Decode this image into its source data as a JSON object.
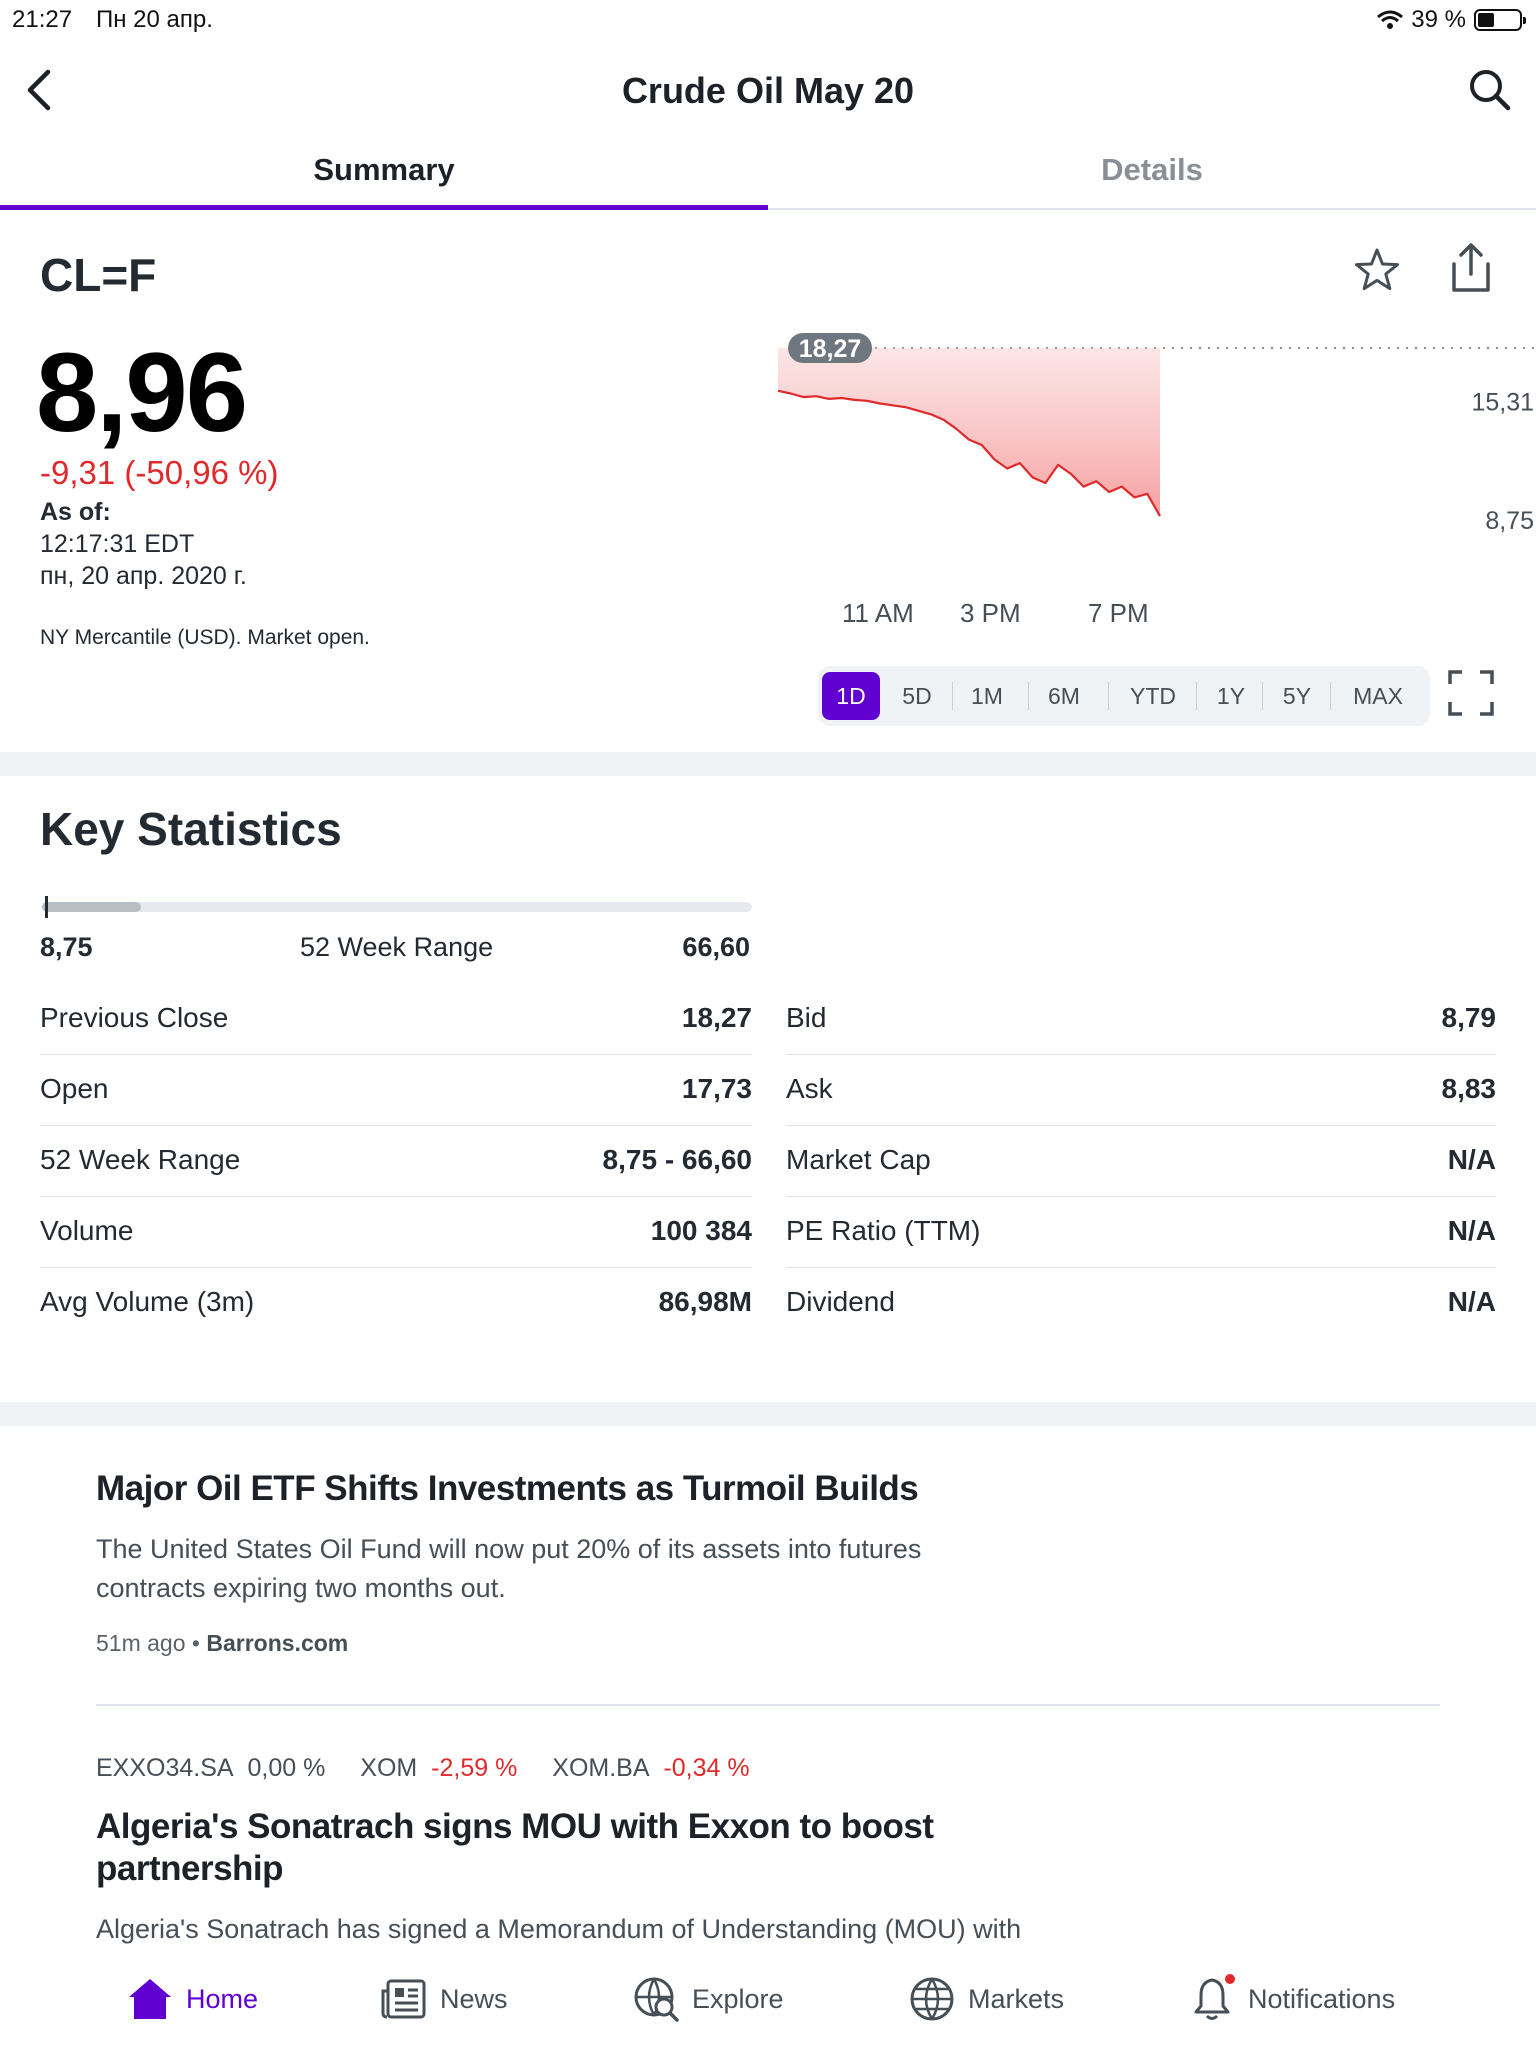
{
  "status_bar": {
    "time": "21:27",
    "date": "Пн 20 апр.",
    "battery": "39 %"
  },
  "nav": {
    "title": "Crude Oil May 20"
  },
  "tabs": {
    "summary": "Summary",
    "details": "Details"
  },
  "quote": {
    "symbol": "CL=F",
    "price": "8,96",
    "change": "-9,31 (-50,96 %)",
    "asof_label": "As of:",
    "asof_time": "12:17:31 EDT",
    "asof_date": "пн, 20 апр. 2020 г.",
    "exchange": "NY Mercantile (USD). Market open."
  },
  "chart_data": {
    "type": "area",
    "title": "",
    "x_tick_labels": [
      "11 AM",
      "3 PM",
      "7 PM"
    ],
    "y_tick_labels": [
      "15,31",
      "8,75"
    ],
    "previous_close_label": "18,27",
    "previous_close": 18.27,
    "ylim": [
      8.75,
      18.27
    ],
    "y_gridlines": [
      15.31,
      8.75
    ],
    "series": [
      {
        "values": [
          15.9,
          15.75,
          15.55,
          15.6,
          15.45,
          15.5,
          15.4,
          15.35,
          15.2,
          15.1,
          15.0,
          14.8,
          14.6,
          14.3,
          13.8,
          13.2,
          12.9,
          12.1,
          11.6,
          11.9,
          11.1,
          10.8,
          11.8,
          11.3,
          10.6,
          10.9,
          10.3,
          10.6,
          10.0,
          10.2,
          8.96
        ]
      }
    ]
  },
  "ranges": [
    "1D",
    "5D",
    "1M",
    "6M",
    "YTD",
    "1Y",
    "5Y",
    "MAX"
  ],
  "key_stats": {
    "title": "Key Statistics",
    "range_low": "8,75",
    "range_label": "52 Week Range",
    "range_high": "66,60",
    "range_fraction": 0.004,
    "left": [
      {
        "label": "Previous Close",
        "value": "18,27"
      },
      {
        "label": "Open",
        "value": "17,73"
      },
      {
        "label": "52 Week Range",
        "value": "8,75 - 66,60"
      },
      {
        "label": "Volume",
        "value": "100 384"
      },
      {
        "label": "Avg Volume (3m)",
        "value": "86,98M"
      }
    ],
    "right": [
      {
        "label": "Bid",
        "value": "8,79"
      },
      {
        "label": "Ask",
        "value": "8,83"
      },
      {
        "label": "Market Cap",
        "value": "N/A"
      },
      {
        "label": "PE Ratio (TTM)",
        "value": "N/A"
      },
      {
        "label": "Dividend",
        "value": "N/A"
      }
    ]
  },
  "news": [
    {
      "headline": "Major Oil ETF Shifts Investments as Turmoil Builds",
      "summary": "The United States Oil Fund will now put 20% of its assets into futures contracts expiring two months out.",
      "time": "51m ago",
      "source": "Barrons.com"
    },
    {
      "tickers": [
        {
          "symbol": "EXXO34.SA",
          "change": "0,00 %"
        },
        {
          "symbol": "XOM",
          "change": "-2,59 %"
        },
        {
          "symbol": "XOM.BA",
          "change": "-0,34 %"
        }
      ],
      "headline": "Algeria's Sonatrach signs MOU with Exxon to boost partnership",
      "summary": "Algeria's Sonatrach has signed a Memorandum of Understanding (MOU) with"
    }
  ],
  "bottom_nav": {
    "home": "Home",
    "news": "News",
    "explore": "Explore",
    "markets": "Markets",
    "notifications": "Notifications"
  },
  "colors": {
    "accent": "#6001d2",
    "negative": "#e0292b",
    "text": "#232a31"
  },
  "icons": [
    "back-chevron-icon",
    "search-icon",
    "star-icon",
    "share-icon",
    "fullscreen-icon",
    "home-icon",
    "news-icon",
    "explore-icon",
    "markets-globe-icon",
    "bell-icon",
    "wifi-icon",
    "battery-icon"
  ]
}
